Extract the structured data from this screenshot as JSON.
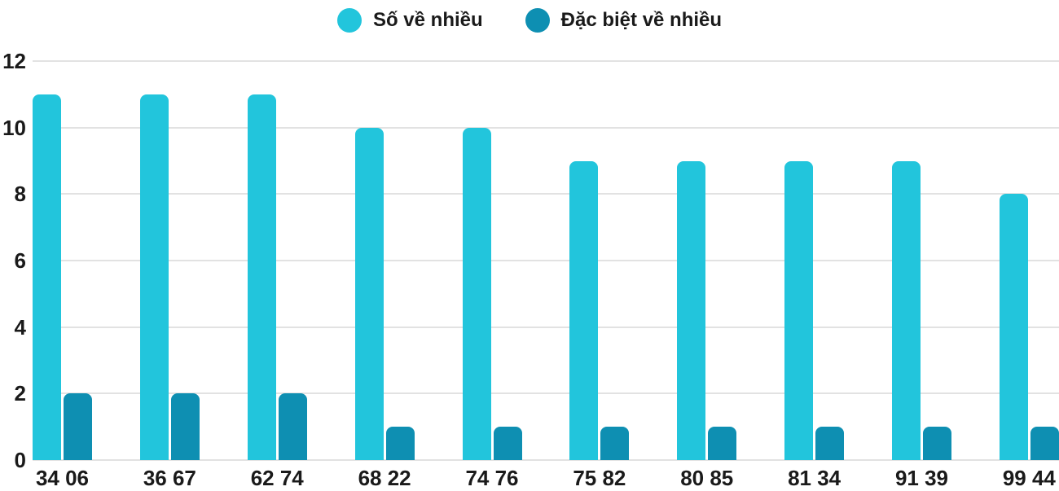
{
  "legend": {
    "position": "top",
    "items": [
      {
        "label": "Số về nhiều",
        "swatch_icon": "circle-swatch",
        "color": "#22C5DC"
      },
      {
        "label": "Đặc biệt về nhiều",
        "swatch_icon": "circle-swatch",
        "color": "#0E8FB2"
      }
    ]
  },
  "chart_data": {
    "type": "bar",
    "title": "",
    "xlabel": "",
    "ylabel": "",
    "categories": [
      "34 06",
      "36 67",
      "62 74",
      "68 22",
      "74 76",
      "75 82",
      "80 85",
      "81 34",
      "91 39",
      "99 44"
    ],
    "series": [
      {
        "name": "Số về nhiều",
        "color": "#22C5DC",
        "values": [
          11,
          11,
          11,
          10,
          10,
          9,
          9,
          9,
          9,
          8
        ]
      },
      {
        "name": "Đặc biệt về nhiều",
        "color": "#0E8FB2",
        "values": [
          2,
          2,
          2,
          1,
          1,
          1,
          1,
          1,
          1,
          1
        ]
      }
    ],
    "ylim": [
      0,
      12
    ],
    "yticks": [
      0,
      2,
      4,
      6,
      8,
      10,
      12
    ],
    "grid": true,
    "gridline_color": "#e2e2e2",
    "legend_position": "top"
  }
}
